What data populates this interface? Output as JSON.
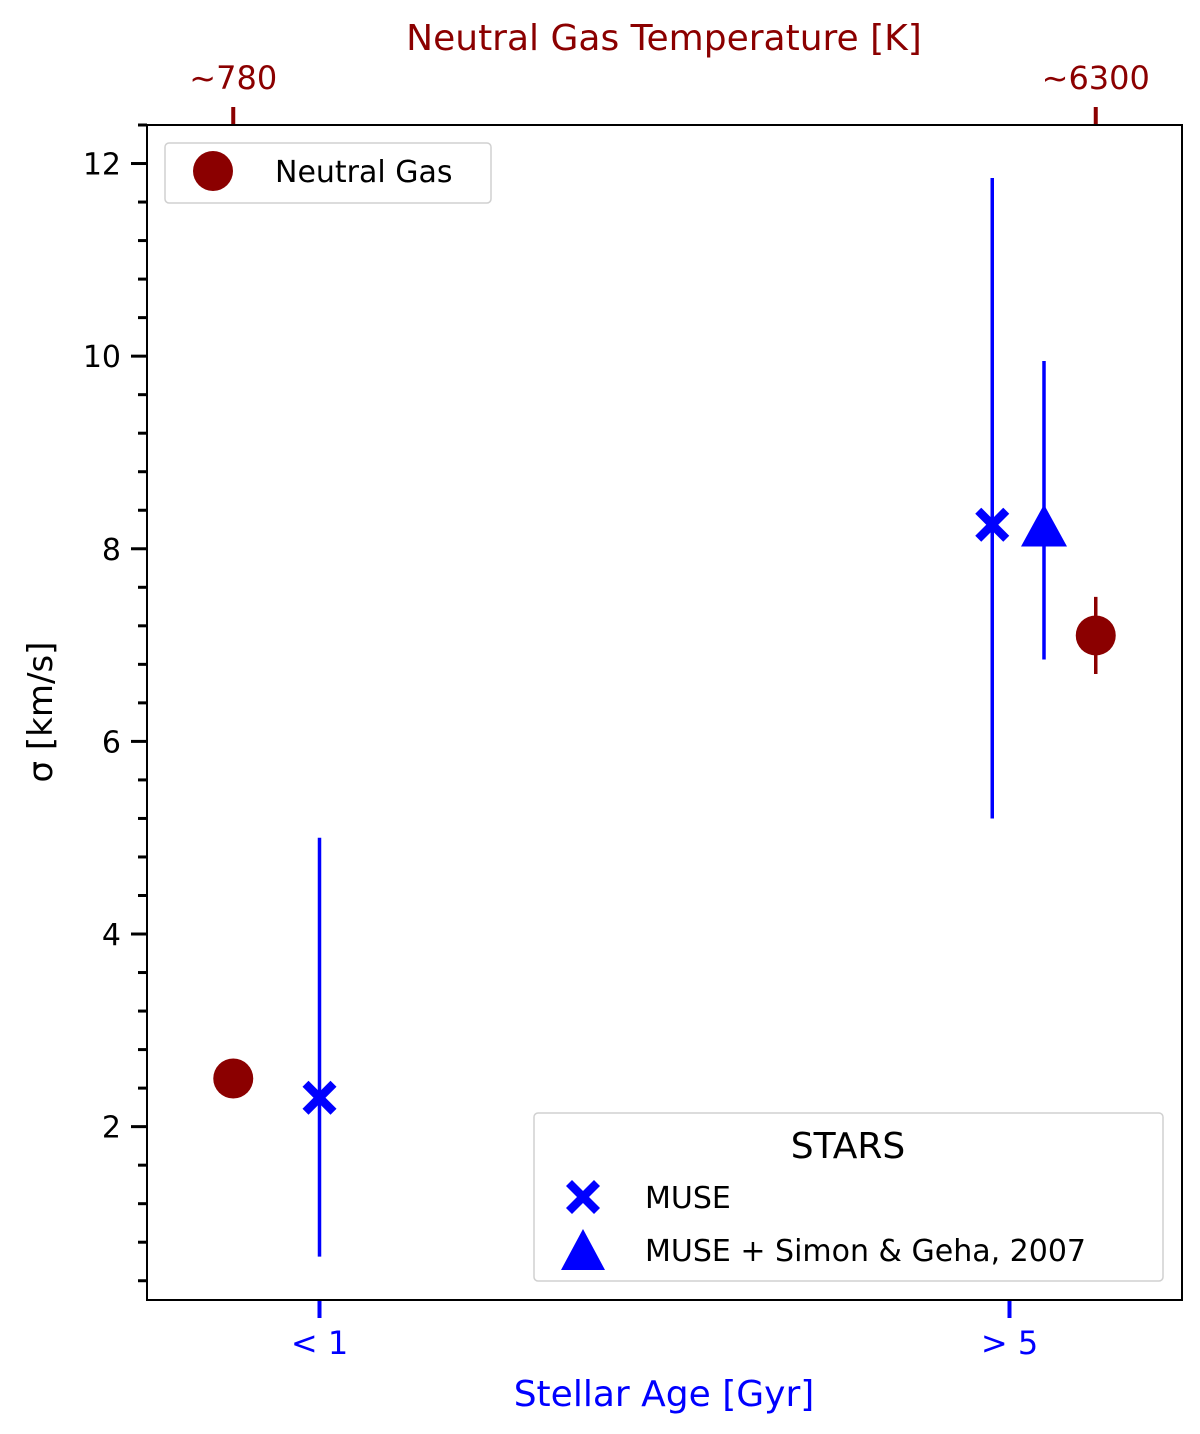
{
  "chart_data": {
    "type": "scatter",
    "title": "",
    "ylabel": "σ [km/s]",
    "xlabel_bottom": "Stellar Age [Gyr]",
    "xlabel_top": "Neutral Gas Temperature [K]",
    "ylim": [
      0.2,
      12.4
    ],
    "y_ticks_major": [
      2,
      4,
      6,
      8,
      10,
      12
    ],
    "y_ticks_major_labels": [
      "2",
      "4",
      "6",
      "8",
      "10",
      "12"
    ],
    "y_minor_step": 0.4,
    "bottom_ticks": [
      {
        "label": "< 1",
        "x": 1.0
      },
      {
        "label": "> 5",
        "x": 9.0
      }
    ],
    "top_ticks": [
      {
        "label": "~780",
        "x": 0.0
      },
      {
        "label": "~6300",
        "x": 10.0
      }
    ],
    "xlim": [
      -1.0,
      11.0
    ],
    "grid": false,
    "colors": {
      "stars": "#0000ff",
      "gas": "#8b0000",
      "axis": "#000000"
    },
    "series": [
      {
        "name": "Neutral Gas",
        "marker": "circle",
        "color": "#8b0000",
        "points": [
          {
            "x": 0.0,
            "y": 2.5,
            "err_low": 0.0,
            "err_high": 0.0
          },
          {
            "x": 10.0,
            "y": 7.1,
            "err_low": 0.4,
            "err_high": 0.4
          }
        ]
      },
      {
        "name": "MUSE",
        "marker": "x",
        "color": "#0000ff",
        "points": [
          {
            "x": 1.0,
            "y": 2.3,
            "err_low": 1.65,
            "err_high": 2.7
          },
          {
            "x": 8.8,
            "y": 8.25,
            "err_low": 3.05,
            "err_high": 3.6
          }
        ]
      },
      {
        "name": "MUSE + Simon & Geha, 2007",
        "marker": "triangle",
        "color": "#0000ff",
        "points": [
          {
            "x": 9.4,
            "y": 8.2,
            "err_low": 1.35,
            "err_high": 1.75
          }
        ]
      }
    ],
    "legend_gas": {
      "position": "top-left",
      "entries": [
        "Neutral Gas"
      ]
    },
    "legend_stars": {
      "position": "bottom-right",
      "title": "STARS",
      "entries": [
        "MUSE",
        "MUSE + Simon & Geha, 2007"
      ]
    }
  }
}
